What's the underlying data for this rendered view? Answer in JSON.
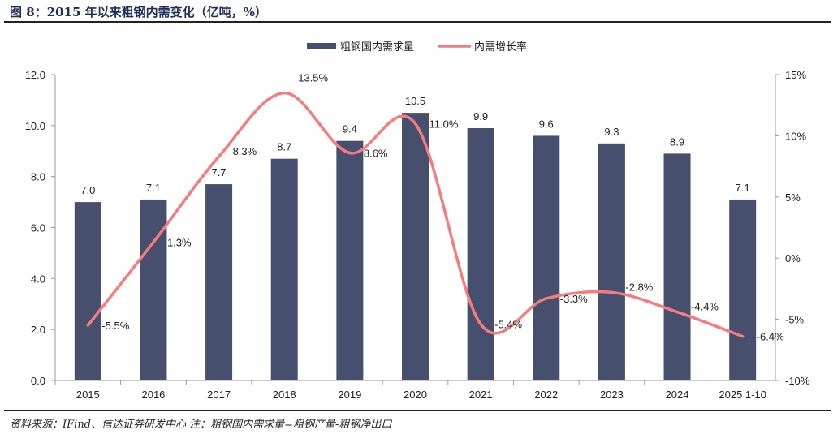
{
  "header": {
    "title": "图 8：2015 年以来粗钢内需变化（亿吨，%）"
  },
  "footer": {
    "source": "资料来源：IFind、信达证券研发中心 注：粗钢国内需求量=粗钢产量-粗钢净出口"
  },
  "chart_data": {
    "type": "bar+line",
    "categories": [
      "2015",
      "2016",
      "2017",
      "2018",
      "2019",
      "2020",
      "2021",
      "2022",
      "2023",
      "2024",
      "2025 1-10"
    ],
    "series": [
      {
        "name": "粗钢国内需求量",
        "type": "bar",
        "axis": "left",
        "color": "#464f6e",
        "values": [
          7.0,
          7.1,
          7.7,
          8.7,
          9.4,
          10.5,
          9.9,
          9.6,
          9.3,
          8.9,
          7.1
        ],
        "labels": [
          "7.0",
          "7.1",
          "7.7",
          "8.7",
          "9.4",
          "10.5",
          "9.9",
          "9.6",
          "9.3",
          "8.9",
          "7.1"
        ]
      },
      {
        "name": "内需增长率",
        "type": "line",
        "smooth": true,
        "axis": "right",
        "color": "#f47c7c",
        "values": [
          -5.5,
          1.3,
          8.3,
          13.5,
          8.6,
          11.0,
          -5.4,
          -3.3,
          -2.8,
          -4.4,
          -6.4
        ],
        "labels": [
          "-5.5%",
          "1.3%",
          "8.3%",
          "13.5%",
          "8.6%",
          "11.0%",
          "-5.4%",
          "-3.3%",
          "-2.8%",
          "-4.4%",
          "-6.4%"
        ]
      }
    ],
    "left_axis": {
      "range": [
        0,
        12
      ],
      "ticks": [
        "0.0",
        "2.0",
        "4.0",
        "6.0",
        "8.0",
        "10.0",
        "12.0"
      ]
    },
    "right_axis": {
      "range": [
        -10,
        15
      ],
      "ticks": [
        "-10%",
        "-5%",
        "0%",
        "5%",
        "10%",
        "15%"
      ]
    },
    "legend": "top-center",
    "grid": false
  }
}
